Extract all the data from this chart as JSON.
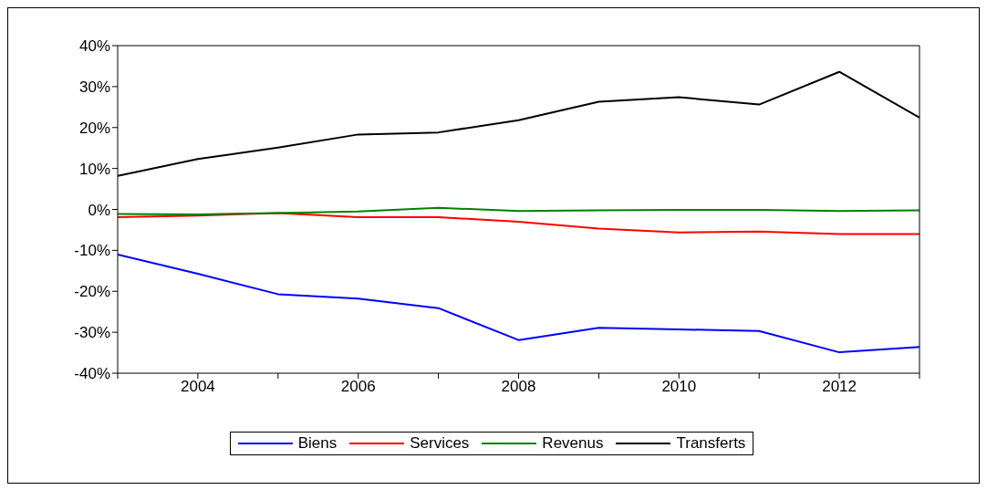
{
  "chart_data": {
    "type": "line",
    "x": [
      2003,
      2004,
      2005,
      2006,
      2007,
      2008,
      2009,
      2010,
      2011,
      2012,
      2013
    ],
    "series": [
      {
        "name": "Biens",
        "color": "#0000ff",
        "values": [
          -11,
          -15.7,
          -20.7,
          -21.8,
          -24.1,
          -31.9,
          -28.9,
          -29.3,
          -29.7,
          -34.9,
          -33.6
        ]
      },
      {
        "name": "Services",
        "color": "#ff0000",
        "values": [
          -1.9,
          -1.5,
          -0.9,
          -1.9,
          -1.9,
          -3.0,
          -4.7,
          -5.6,
          -5.4,
          -6.0,
          -6.0
        ]
      },
      {
        "name": "Revenus",
        "color": "#008000",
        "values": [
          -1.1,
          -1.2,
          -0.9,
          -0.5,
          0.4,
          -0.4,
          -0.2,
          -0.1,
          -0.1,
          -0.4,
          -0.2
        ]
      },
      {
        "name": "Transferts",
        "color": "#000000",
        "values": [
          8.2,
          12.3,
          15.1,
          18.3,
          18.8,
          21.8,
          26.3,
          27.4,
          25.6,
          33.6,
          22.4
        ]
      }
    ],
    "xlim": [
      2003,
      2013
    ],
    "xticks": [
      {
        "value": 2003,
        "label": null
      },
      2004,
      {
        "value": 2005,
        "label": null
      },
      2006,
      {
        "value": 2007,
        "label": null
      },
      2008,
      {
        "value": 2009,
        "label": null
      },
      2010,
      {
        "value": 2011,
        "label": null
      },
      2012,
      {
        "value": 2013,
        "label": null
      }
    ],
    "ylim": [
      -40,
      40
    ],
    "yticks": [
      {
        "value": -40,
        "label": "-40%"
      },
      {
        "value": -30,
        "label": "-30%"
      },
      {
        "value": -20,
        "label": "-20%"
      },
      {
        "value": -10,
        "label": "-10%"
      },
      {
        "value": 0,
        "label": "0%"
      },
      {
        "value": 10,
        "label": "10%"
      },
      {
        "value": 20,
        "label": "20%"
      },
      {
        "value": 30,
        "label": "30%"
      },
      {
        "value": 40,
        "label": "40%"
      }
    ],
    "grid": false,
    "legend": "bottom",
    "marker": "none",
    "line_style": "solid"
  }
}
